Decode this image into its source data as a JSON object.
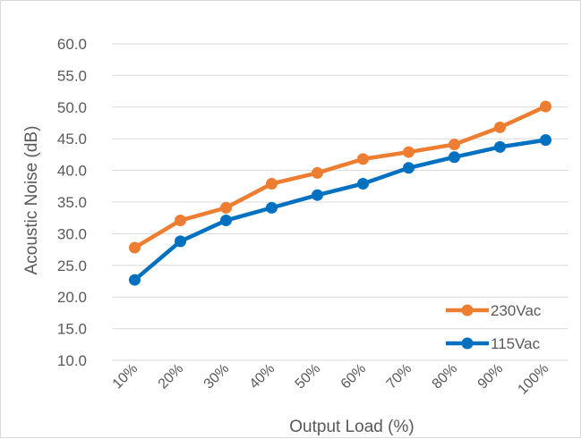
{
  "chart_data": {
    "type": "line",
    "title": "",
    "xlabel": "Output Load (%)",
    "ylabel": "Acoustic Noise (dB)",
    "categories": [
      "10%",
      "20%",
      "30%",
      "40%",
      "50%",
      "60%",
      "70%",
      "80%",
      "90%",
      "100%"
    ],
    "ylim": [
      10,
      60
    ],
    "yticks": [
      "10.0",
      "15.0",
      "20.0",
      "25.0",
      "30.0",
      "35.0",
      "40.0",
      "45.0",
      "50.0",
      "55.0",
      "60.0"
    ],
    "grid": true,
    "legend_position": "bottom-right",
    "series": [
      {
        "name": "230Vac",
        "color": "#ed7d31",
        "marker": "circle",
        "values": [
          27.8,
          32.1,
          34.1,
          37.9,
          39.6,
          41.8,
          42.9,
          44.1,
          46.8,
          50.1
        ]
      },
      {
        "name": "115Vac",
        "color": "#0070c0",
        "marker": "circle",
        "values": [
          22.7,
          28.8,
          32.1,
          34.1,
          36.1,
          37.9,
          40.4,
          42.1,
          43.7,
          44.8
        ]
      }
    ]
  }
}
